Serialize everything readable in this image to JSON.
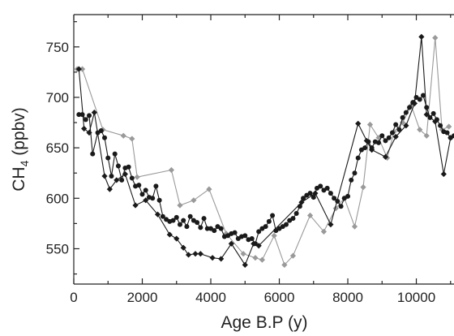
{
  "chart_data": {
    "type": "line",
    "title": "",
    "xlabel": "Age B.P (y)",
    "ylabel_main": "CH",
    "ylabel_sub": "4",
    "ylabel_unit": " (ppbv)",
    "xlim": [
      0,
      11100
    ],
    "ylim": [
      515,
      782
    ],
    "x_ticks": [
      0,
      2000,
      4000,
      6000,
      8000,
      10000
    ],
    "y_ticks": [
      550,
      600,
      650,
      700,
      750
    ],
    "grid": false,
    "legend": "none",
    "series": [
      {
        "color": "#9a9a9a",
        "marker": "diamond",
        "x": [
          100,
          250,
          850,
          1450,
          1700,
          1850,
          2850,
          3100,
          3500,
          3950,
          4450,
          4950,
          5300,
          5500,
          5850,
          6150,
          6400,
          6900,
          7300,
          7650,
          7900,
          8200,
          8450,
          8650,
          8900,
          9150,
          9350,
          9600,
          9850,
          10100,
          10300,
          10550,
          10750,
          10950
        ],
        "y": [
          728,
          728,
          668,
          662,
          659,
          621,
          628,
          593,
          598,
          609,
          565,
          545,
          541,
          539,
          563,
          534,
          543,
          583,
          567,
          590,
          600,
          572,
          611,
          673,
          660,
          640,
          666,
          675,
          692,
          668,
          662,
          759,
          668,
          671
        ]
      },
      {
        "color": "#1a1a1a",
        "marker": "circle",
        "x": [
          150,
          250,
          350,
          450,
          550,
          700,
          800,
          900,
          1000,
          1100,
          1200,
          1300,
          1400,
          1500,
          1600,
          1700,
          1800,
          1900,
          2000,
          2100,
          2200,
          2300,
          2400,
          2500,
          2600,
          2700,
          2800,
          2900,
          3000,
          3100,
          3200,
          3300,
          3400,
          3500,
          3600,
          3700,
          3800,
          3900,
          4000,
          4100,
          4200,
          4300,
          4400,
          4500,
          4600,
          4700,
          4800,
          4900,
          5000,
          5100,
          5200,
          5300,
          5400,
          5500,
          5600,
          5700,
          5800,
          5900,
          6000,
          6100,
          6200,
          6300,
          6400,
          6500,
          6600,
          6700,
          6800,
          6900,
          7000,
          7100,
          7200,
          7300,
          7400,
          7500,
          7600,
          7700,
          7800,
          7900,
          8000,
          8100,
          8200,
          8300,
          8400,
          8500,
          8600,
          8700,
          8800,
          8900,
          9000,
          9100,
          9200,
          9300,
          9400,
          9500,
          9600,
          9700,
          9800,
          9900,
          10000,
          10100,
          10200,
          10300,
          10400,
          10500,
          10600,
          10700,
          10800,
          10900,
          11000,
          11100
        ],
        "y": [
          683,
          683,
          678,
          682,
          644,
          665,
          667,
          660,
          640,
          622,
          644,
          632,
          618,
          630,
          631,
          620,
          612,
          613,
          604,
          608,
          601,
          600,
          612,
          598,
          582,
          579,
          577,
          578,
          581,
          574,
          578,
          572,
          582,
          578,
          576,
          571,
          580,
          570,
          570,
          568,
          572,
          570,
          562,
          563,
          565,
          566,
          560,
          562,
          563,
          559,
          560,
          555,
          567,
          570,
          572,
          577,
          583,
          568,
          570,
          572,
          574,
          578,
          580,
          585,
          592,
          600,
          603,
          605,
          601,
          610,
          612,
          608,
          610,
          605,
          600,
          597,
          592,
          600,
          602,
          618,
          625,
          640,
          648,
          650,
          656,
          650,
          656,
          655,
          662,
          657,
          660,
          665,
          673,
          668,
          680,
          685,
          690,
          695,
          700,
          698,
          702,
          690,
          680,
          684,
          678,
          672,
          666,
          665,
          660,
          662
        ]
      },
      {
        "color": "#1a1a1a",
        "marker": "diamond",
        "x": [
          150,
          300,
          450,
          600,
          900,
          1050,
          1250,
          1500,
          1800,
          2100,
          2450,
          2800,
          3000,
          3200,
          3350,
          3550,
          3700,
          4050,
          4300,
          4600,
          5000,
          5250,
          5400,
          6650,
          7050,
          7500,
          8300,
          8550,
          8700,
          9100,
          9400,
          9700,
          9950,
          10150,
          10300,
          10550,
          10800,
          11000
        ],
        "y": [
          728,
          669,
          665,
          685,
          622,
          609,
          618,
          624,
          593,
          598,
          584,
          564,
          560,
          551,
          544,
          545,
          545,
          541,
          540,
          555,
          534,
          555,
          553,
          596,
          605,
          574,
          674,
          657,
          648,
          641,
          661,
          672,
          694,
          760,
          683,
          676,
          624,
          660
        ]
      }
    ]
  }
}
